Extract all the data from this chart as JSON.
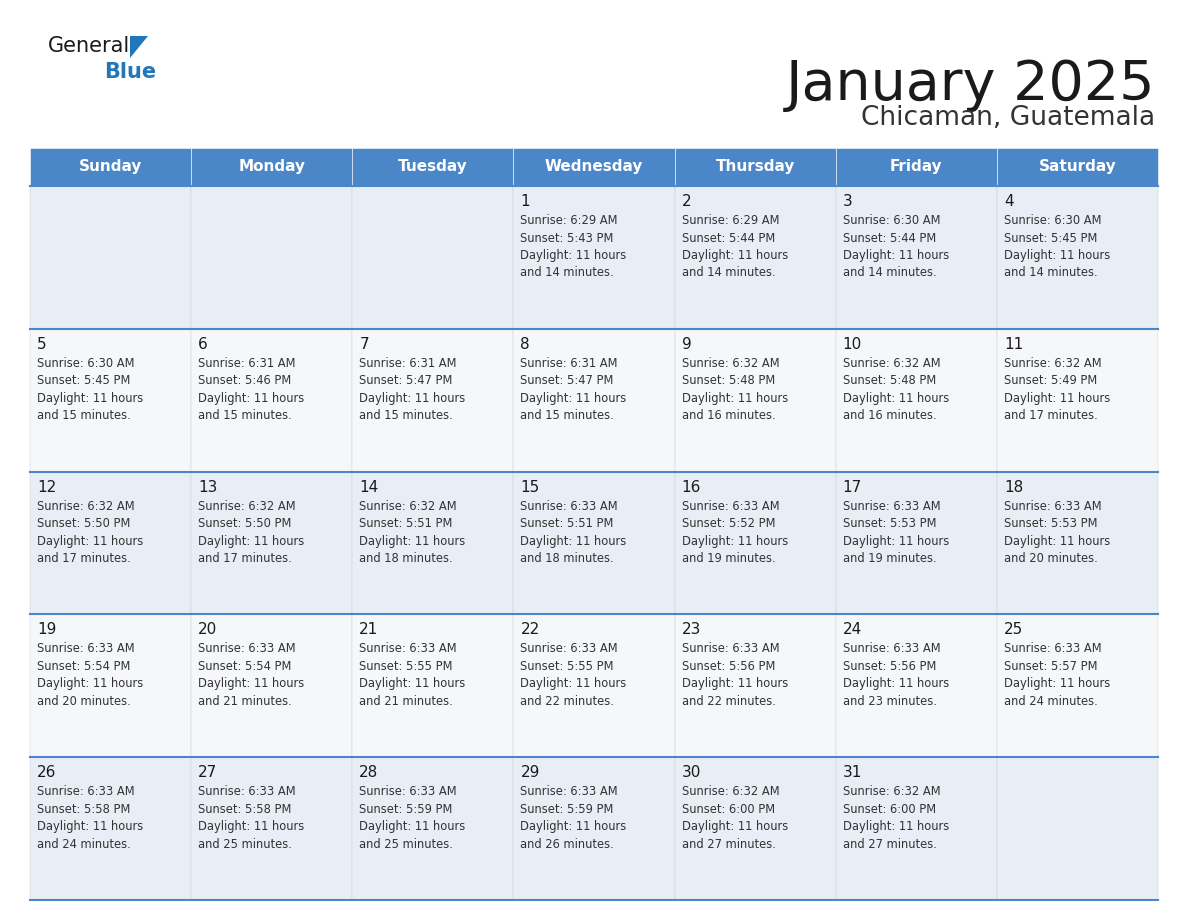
{
  "title": "January 2025",
  "subtitle": "Chicaman, Guatemala",
  "header_bg": "#4a86c8",
  "header_text_color": "#ffffff",
  "cell_bg_odd": "#e8eef5",
  "cell_bg_even": "#f5f7fa",
  "border_color": "#4a86c8",
  "row_divider_color": "#4a86c8",
  "day_names": [
    "Sunday",
    "Monday",
    "Tuesday",
    "Wednesday",
    "Thursday",
    "Friday",
    "Saturday"
  ],
  "title_color": "#1a1a1a",
  "subtitle_color": "#333333",
  "day_number_color": "#1a1a1a",
  "cell_text_color": "#333333",
  "logo_general_color": "#1a1a1a",
  "logo_blue_color": "#2277bb",
  "calendar_data": [
    [
      "",
      "",
      "",
      "1\nSunrise: 6:29 AM\nSunset: 5:43 PM\nDaylight: 11 hours\nand 14 minutes.",
      "2\nSunrise: 6:29 AM\nSunset: 5:44 PM\nDaylight: 11 hours\nand 14 minutes.",
      "3\nSunrise: 6:30 AM\nSunset: 5:44 PM\nDaylight: 11 hours\nand 14 minutes.",
      "4\nSunrise: 6:30 AM\nSunset: 5:45 PM\nDaylight: 11 hours\nand 14 minutes."
    ],
    [
      "5\nSunrise: 6:30 AM\nSunset: 5:45 PM\nDaylight: 11 hours\nand 15 minutes.",
      "6\nSunrise: 6:31 AM\nSunset: 5:46 PM\nDaylight: 11 hours\nand 15 minutes.",
      "7\nSunrise: 6:31 AM\nSunset: 5:47 PM\nDaylight: 11 hours\nand 15 minutes.",
      "8\nSunrise: 6:31 AM\nSunset: 5:47 PM\nDaylight: 11 hours\nand 15 minutes.",
      "9\nSunrise: 6:32 AM\nSunset: 5:48 PM\nDaylight: 11 hours\nand 16 minutes.",
      "10\nSunrise: 6:32 AM\nSunset: 5:48 PM\nDaylight: 11 hours\nand 16 minutes.",
      "11\nSunrise: 6:32 AM\nSunset: 5:49 PM\nDaylight: 11 hours\nand 17 minutes."
    ],
    [
      "12\nSunrise: 6:32 AM\nSunset: 5:50 PM\nDaylight: 11 hours\nand 17 minutes.",
      "13\nSunrise: 6:32 AM\nSunset: 5:50 PM\nDaylight: 11 hours\nand 17 minutes.",
      "14\nSunrise: 6:32 AM\nSunset: 5:51 PM\nDaylight: 11 hours\nand 18 minutes.",
      "15\nSunrise: 6:33 AM\nSunset: 5:51 PM\nDaylight: 11 hours\nand 18 minutes.",
      "16\nSunrise: 6:33 AM\nSunset: 5:52 PM\nDaylight: 11 hours\nand 19 minutes.",
      "17\nSunrise: 6:33 AM\nSunset: 5:53 PM\nDaylight: 11 hours\nand 19 minutes.",
      "18\nSunrise: 6:33 AM\nSunset: 5:53 PM\nDaylight: 11 hours\nand 20 minutes."
    ],
    [
      "19\nSunrise: 6:33 AM\nSunset: 5:54 PM\nDaylight: 11 hours\nand 20 minutes.",
      "20\nSunrise: 6:33 AM\nSunset: 5:54 PM\nDaylight: 11 hours\nand 21 minutes.",
      "21\nSunrise: 6:33 AM\nSunset: 5:55 PM\nDaylight: 11 hours\nand 21 minutes.",
      "22\nSunrise: 6:33 AM\nSunset: 5:55 PM\nDaylight: 11 hours\nand 22 minutes.",
      "23\nSunrise: 6:33 AM\nSunset: 5:56 PM\nDaylight: 11 hours\nand 22 minutes.",
      "24\nSunrise: 6:33 AM\nSunset: 5:56 PM\nDaylight: 11 hours\nand 23 minutes.",
      "25\nSunrise: 6:33 AM\nSunset: 5:57 PM\nDaylight: 11 hours\nand 24 minutes."
    ],
    [
      "26\nSunrise: 6:33 AM\nSunset: 5:58 PM\nDaylight: 11 hours\nand 24 minutes.",
      "27\nSunrise: 6:33 AM\nSunset: 5:58 PM\nDaylight: 11 hours\nand 25 minutes.",
      "28\nSunrise: 6:33 AM\nSunset: 5:59 PM\nDaylight: 11 hours\nand 25 minutes.",
      "29\nSunrise: 6:33 AM\nSunset: 5:59 PM\nDaylight: 11 hours\nand 26 minutes.",
      "30\nSunrise: 6:32 AM\nSunset: 6:00 PM\nDaylight: 11 hours\nand 27 minutes.",
      "31\nSunrise: 6:32 AM\nSunset: 6:00 PM\nDaylight: 11 hours\nand 27 minutes.",
      ""
    ]
  ]
}
